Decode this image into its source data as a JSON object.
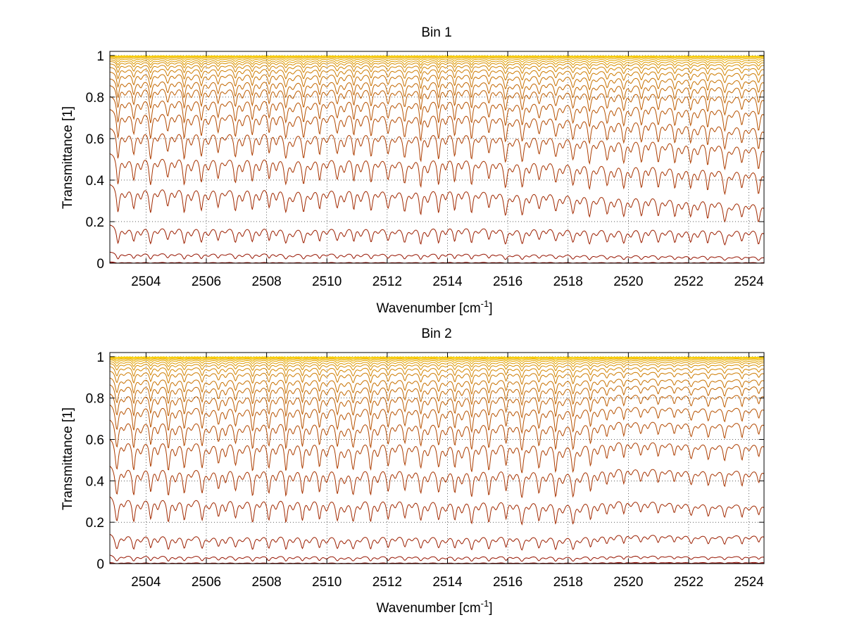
{
  "chart_data": [
    {
      "type": "line",
      "title": "Bin 1",
      "xlabel": "Wavenumber [cm",
      "xlabel_superscript": "-1",
      "xlabel_suffix": "]",
      "ylabel": "Transmittance [1]",
      "xlim": [
        2502.8,
        2524.5
      ],
      "ylim": [
        0,
        1.02
      ],
      "xticks": [
        2504,
        2506,
        2508,
        2510,
        2512,
        2514,
        2516,
        2518,
        2520,
        2522,
        2524
      ],
      "yticks": [
        0,
        0.2,
        0.4,
        0.6,
        0.8,
        1
      ],
      "grid": true,
      "grid_style": "dotted",
      "line_count": 22,
      "color_range": [
        "#8b0000",
        "#ffd700"
      ],
      "line_peak_levels": [
        0.003,
        0.01,
        0.06,
        0.2,
        0.4,
        0.55,
        0.67,
        0.76,
        0.82,
        0.87,
        0.9,
        0.93,
        0.95,
        0.965,
        0.975,
        0.982,
        0.988,
        0.992,
        0.995,
        0.997,
        0.998,
        0.999
      ],
      "line_min_levels": [
        0.0,
        0.0,
        0.01,
        0.06,
        0.18,
        0.3,
        0.42,
        0.52,
        0.6,
        0.68,
        0.74,
        0.8,
        0.85,
        0.89,
        0.92,
        0.94,
        0.96,
        0.975,
        0.985,
        0.99,
        0.994,
        0.996
      ],
      "line_end_levels": [
        0.003,
        0.01,
        0.04,
        0.19,
        0.32,
        0.48,
        0.6,
        0.69,
        0.77,
        0.83,
        0.87,
        0.9,
        0.93,
        0.95,
        0.965,
        0.975,
        0.982,
        0.988,
        0.992,
        0.995,
        0.997,
        0.998
      ],
      "strong_lines_end": 2524.5,
      "weak_lines_start": 2524.6,
      "band_center_spacing": 0.56
    },
    {
      "type": "line",
      "title": "Bin 2",
      "xlabel": "Wavenumber [cm",
      "xlabel_superscript": "-1",
      "xlabel_suffix": "]",
      "ylabel": "Transmittance [1]",
      "xlim": [
        2502.8,
        2524.5
      ],
      "ylim": [
        0,
        1.02
      ],
      "xticks": [
        2504,
        2506,
        2508,
        2510,
        2512,
        2514,
        2516,
        2518,
        2520,
        2522,
        2524
      ],
      "yticks": [
        0,
        0.2,
        0.4,
        0.6,
        0.8,
        1
      ],
      "grid": true,
      "grid_style": "dotted",
      "line_count": 22,
      "color_range": [
        "#8b0000",
        "#ffd700"
      ],
      "line_peak_levels": [
        0.003,
        0.01,
        0.05,
        0.16,
        0.35,
        0.5,
        0.63,
        0.72,
        0.79,
        0.84,
        0.88,
        0.91,
        0.94,
        0.96,
        0.972,
        0.98,
        0.987,
        0.991,
        0.994,
        0.996,
        0.998,
        0.999
      ],
      "line_min_levels": [
        0.0,
        0.0,
        0.005,
        0.04,
        0.14,
        0.25,
        0.36,
        0.47,
        0.56,
        0.64,
        0.71,
        0.77,
        0.83,
        0.87,
        0.91,
        0.935,
        0.955,
        0.97,
        0.98,
        0.988,
        0.993,
        0.996
      ],
      "line_end_levels": [
        0.003,
        0.01,
        0.04,
        0.15,
        0.3,
        0.47,
        0.6,
        0.7,
        0.77,
        0.83,
        0.87,
        0.9,
        0.93,
        0.95,
        0.965,
        0.975,
        0.982,
        0.988,
        0.992,
        0.995,
        0.997,
        0.998
      ],
      "strong_lines_end": 2518.0,
      "weak_lines_start": 2518.0,
      "band_center_spacing": 0.56
    }
  ]
}
